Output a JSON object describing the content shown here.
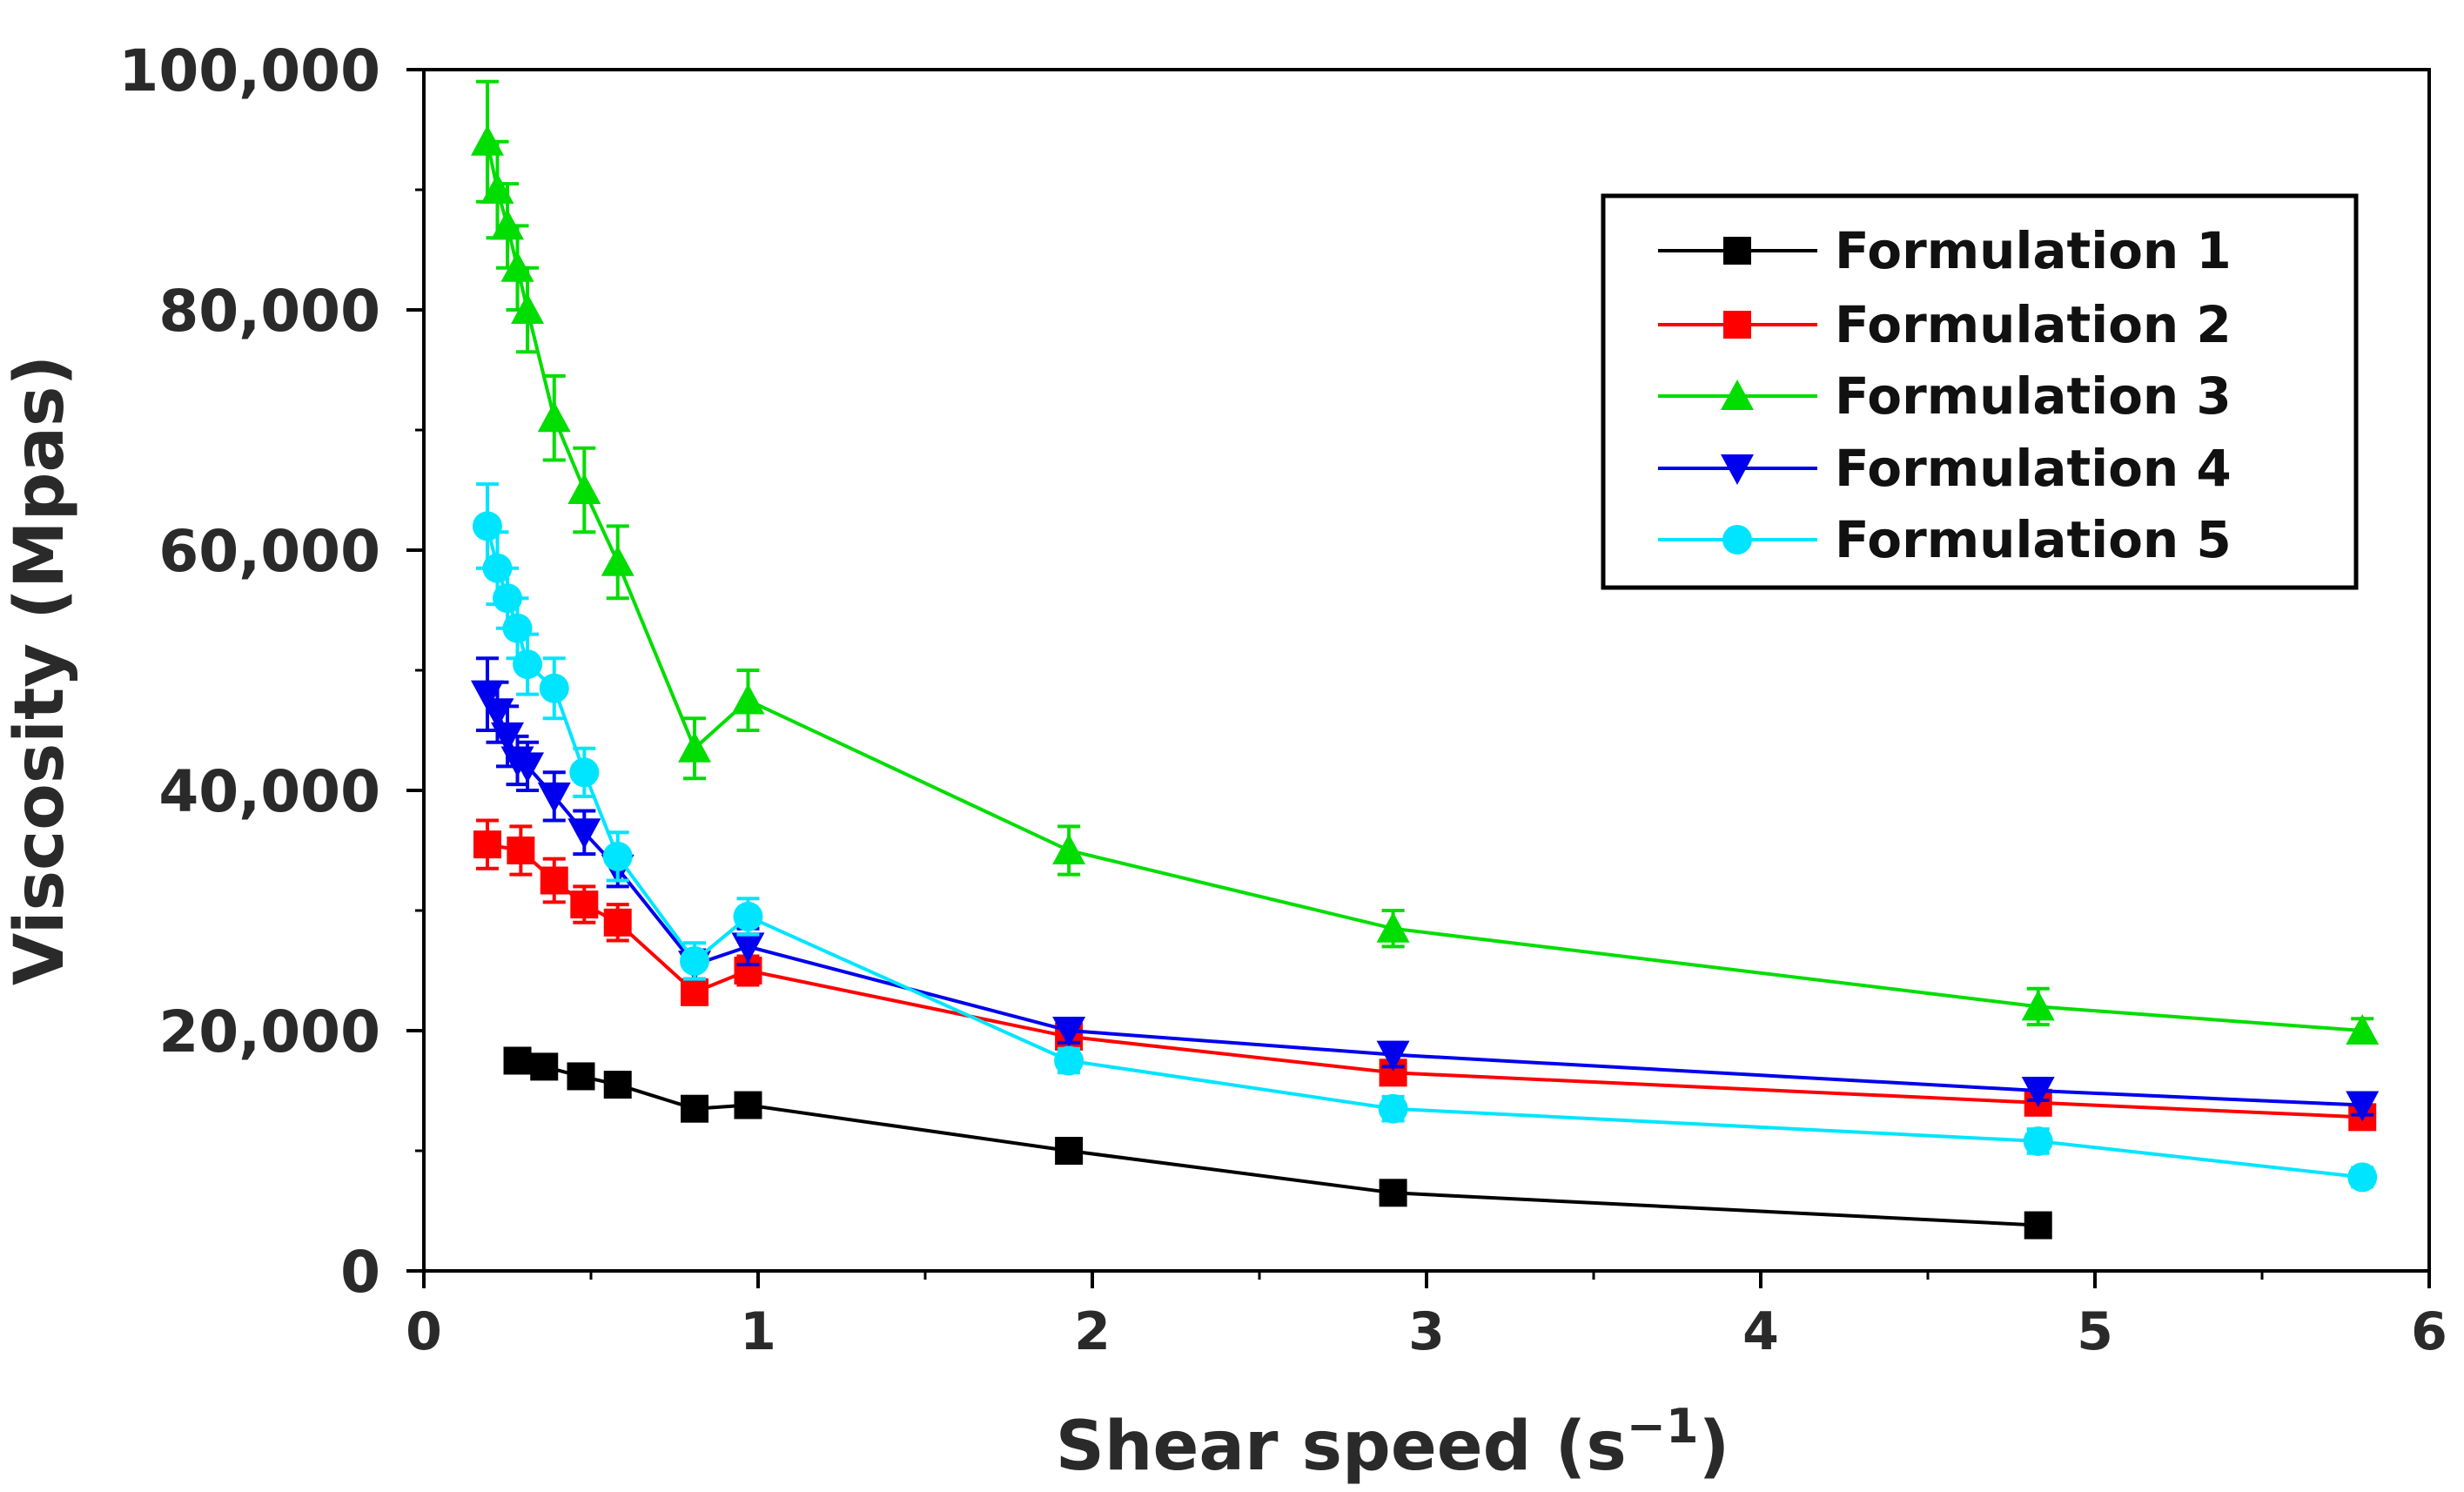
{
  "chart_data": {
    "type": "line",
    "title": "",
    "xlabel": "Shear speed (s",
    "xlabel_superscript": "−1",
    "xlabel_suffix": ")",
    "ylabel": "Viscosity (Mpas)",
    "xlim": [
      0,
      6
    ],
    "ylim": [
      0,
      100000
    ],
    "x_ticks": [
      "0",
      "1",
      "2",
      "3",
      "4",
      "5",
      "6"
    ],
    "x_tick_values": [
      0,
      1,
      2,
      3,
      4,
      5,
      6
    ],
    "y_ticks": [
      "0",
      "20,000",
      "40,000",
      "60,000",
      "80,000",
      "100,000"
    ],
    "y_tick_values": [
      0,
      20000,
      40000,
      60000,
      80000,
      100000
    ],
    "grid": false,
    "legend_position": "top-right",
    "series": [
      {
        "name": "Formulation 1",
        "color": "#000000",
        "marker": "square",
        "x": [
          0.28,
          0.36,
          0.47,
          0.58,
          0.81,
          0.97,
          1.93,
          2.9,
          4.83
        ],
        "y": [
          17500,
          17000,
          16200,
          15500,
          13500,
          13800,
          10000,
          6500,
          3800
        ],
        "err": [
          600,
          600,
          600,
          600,
          700,
          700,
          500,
          500,
          500
        ]
      },
      {
        "name": "Formulation 2",
        "color": "#ff0000",
        "marker": "square",
        "x": [
          0.19,
          0.29,
          0.39,
          0.48,
          0.58,
          0.81,
          0.97,
          1.93,
          2.9,
          4.83,
          5.8
        ],
        "y": [
          35500,
          35000,
          32500,
          30500,
          29000,
          23200,
          25000,
          19500,
          16500,
          14000,
          12800
        ],
        "err": [
          2000,
          2000,
          1800,
          1500,
          1500,
          1000,
          1200,
          900,
          800,
          700,
          700
        ]
      },
      {
        "name": "Formulation 3",
        "color": "#00dd00",
        "marker": "triangle-up",
        "x": [
          0.19,
          0.22,
          0.25,
          0.28,
          0.31,
          0.39,
          0.48,
          0.58,
          0.81,
          0.97,
          1.93,
          2.9,
          4.83,
          5.8
        ],
        "y": [
          94000,
          90000,
          87000,
          83500,
          80000,
          71000,
          65000,
          59000,
          43500,
          47500,
          35000,
          28500,
          22000,
          20000
        ],
        "err": [
          5000,
          4000,
          3500,
          3500,
          3500,
          3500,
          3500,
          3000,
          2500,
          2500,
          2000,
          1500,
          1500,
          1000
        ]
      },
      {
        "name": "Formulation 4",
        "color": "#0000ee",
        "marker": "triangle-down",
        "x": [
          0.19,
          0.22,
          0.25,
          0.28,
          0.31,
          0.39,
          0.48,
          0.58,
          0.81,
          0.97,
          1.93,
          2.9,
          4.83,
          5.8
        ],
        "y": [
          48000,
          46500,
          44500,
          42500,
          42000,
          39500,
          36500,
          33500,
          25500,
          27000,
          20000,
          18000,
          15000,
          13800
        ],
        "err": [
          3000,
          2500,
          2500,
          2000,
          2000,
          2000,
          1800,
          1500,
          1200,
          1500,
          1000,
          1000,
          800,
          800
        ]
      },
      {
        "name": "Formulation 5",
        "color": "#00e5ff",
        "marker": "circle",
        "x": [
          0.19,
          0.22,
          0.25,
          0.28,
          0.31,
          0.39,
          0.48,
          0.58,
          0.81,
          0.97,
          1.93,
          2.9,
          4.83,
          5.8
        ],
        "y": [
          62000,
          58500,
          56000,
          53500,
          50500,
          48500,
          41500,
          34500,
          25800,
          29500,
          17500,
          13500,
          10800,
          7800
        ],
        "err": [
          3500,
          3000,
          2500,
          2500,
          2500,
          2500,
          2000,
          2000,
          1500,
          1500,
          1000,
          1000,
          1000,
          800
        ]
      }
    ]
  }
}
